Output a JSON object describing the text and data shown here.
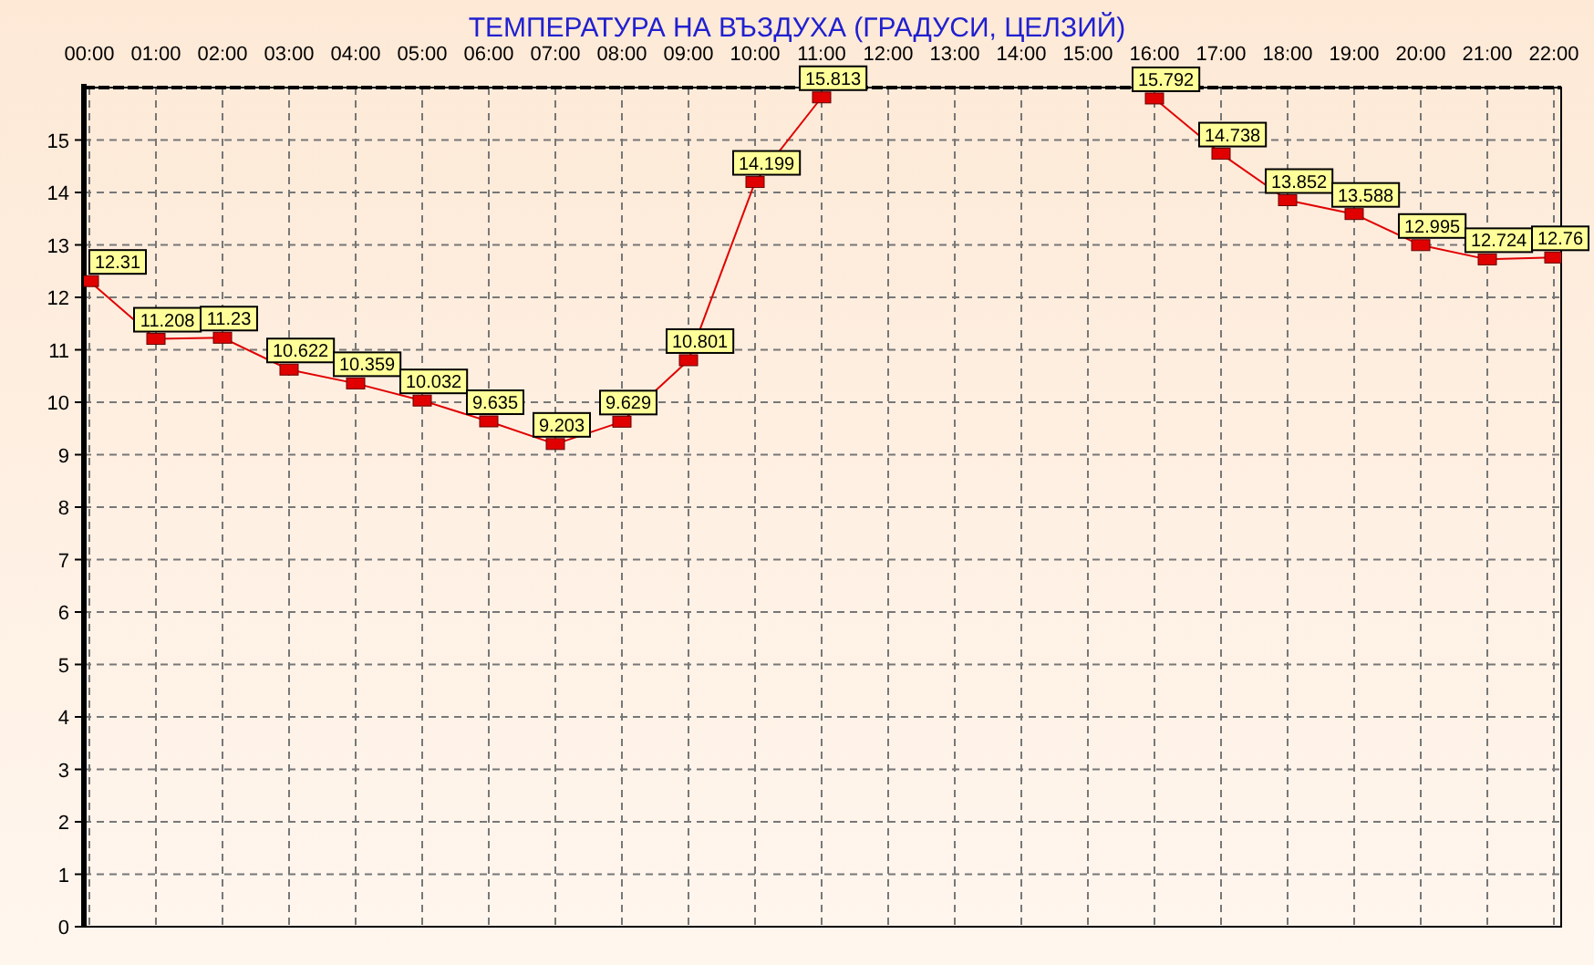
{
  "chart_data": {
    "type": "line",
    "title": "ТЕМПЕРАТУРА НА ВЪЗДУХА (ГРАДУСИ, ЦЕЛЗИЙ)",
    "categories": [
      "00:00",
      "01:00",
      "02:00",
      "03:00",
      "04:00",
      "05:00",
      "06:00",
      "07:00",
      "08:00",
      "09:00",
      "10:00",
      "11:00",
      "12:00",
      "13:00",
      "14:00",
      "15:00",
      "16:00",
      "17:00",
      "18:00",
      "19:00",
      "20:00",
      "21:00",
      "22:00"
    ],
    "series": [
      {
        "color": "#e00000",
        "values": [
          12.31,
          11.208,
          11.23,
          10.622,
          10.359,
          10.032,
          9.635,
          9.203,
          9.629,
          10.801,
          14.199,
          15.813,
          null,
          null,
          null,
          null,
          15.792,
          14.738,
          13.852,
          13.588,
          12.995,
          12.724,
          12.76
        ]
      }
    ],
    "ylim": [
      0,
      16
    ],
    "yticks": [
      0,
      1,
      2,
      3,
      4,
      5,
      6,
      7,
      8,
      9,
      10,
      11,
      12,
      13,
      14,
      15
    ],
    "grid": true,
    "marker": "square",
    "data_labels": true
  }
}
